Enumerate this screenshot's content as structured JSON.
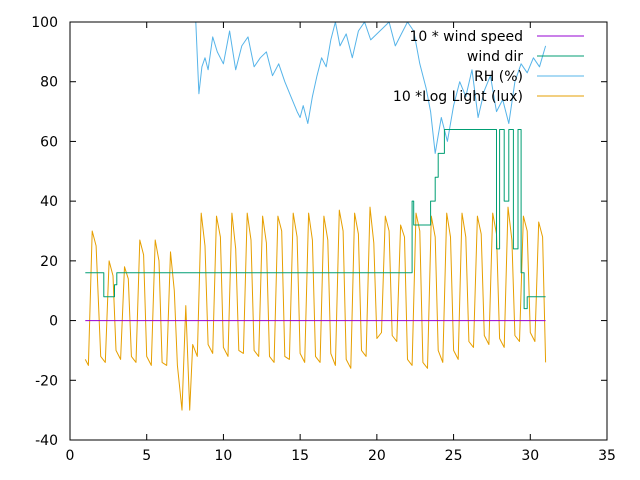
{
  "chart_data": {
    "type": "line",
    "title": "",
    "xlabel": "",
    "ylabel": "",
    "xlim": [
      0,
      35
    ],
    "ylim": [
      -40,
      100
    ],
    "xticks": [
      0,
      5,
      10,
      15,
      20,
      25,
      30,
      35
    ],
    "yticks": [
      -40,
      -20,
      0,
      20,
      40,
      60,
      80,
      100
    ],
    "xtick_labels": [
      "0",
      "5",
      "10",
      "15",
      "20",
      "25",
      "30",
      "35"
    ],
    "ytick_labels": [
      "-40",
      "-20",
      "0",
      "20",
      "40",
      "60",
      "80",
      "100"
    ],
    "grid": false,
    "legend_position": "top-right",
    "series": [
      {
        "name": "10 * wind speed",
        "color": "#9400d3",
        "x": [
          1.0,
          31.0
        ],
        "y": [
          0,
          0
        ]
      },
      {
        "name": "wind dir",
        "color": "#009e73",
        "x": [
          1.0,
          2.2,
          2.2,
          2.9,
          2.9,
          3.05,
          3.05,
          22.3,
          22.3,
          22.4,
          22.4,
          23.5,
          23.5,
          23.8,
          23.8,
          24.0,
          24.0,
          24.4,
          24.4,
          25.0,
          25.0,
          27.8,
          27.8,
          28.0,
          28.0,
          28.3,
          28.3,
          28.6,
          28.6,
          28.9,
          28.9,
          29.2,
          29.2,
          29.4,
          29.4,
          29.6,
          29.6,
          29.8,
          29.8,
          31.0
        ],
        "y": [
          16,
          16,
          8,
          8,
          12,
          12,
          16,
          16,
          40,
          40,
          32,
          32,
          40,
          40,
          48,
          48,
          56,
          56,
          64,
          64,
          64,
          64,
          24,
          24,
          64,
          64,
          40,
          40,
          64,
          64,
          24,
          24,
          64,
          64,
          16,
          16,
          4,
          4,
          8,
          8
        ]
      },
      {
        "name": "RH (%)",
        "color": "#56b4e9",
        "x": [
          8.2,
          8.4,
          8.6,
          8.8,
          9.0,
          9.3,
          9.6,
          10.0,
          10.4,
          10.8,
          11.2,
          11.6,
          12.0,
          12.4,
          12.8,
          13.2,
          13.6,
          14.0,
          14.4,
          14.8,
          15.0,
          15.2,
          15.5,
          15.8,
          16.1,
          16.4,
          16.7,
          17.0,
          17.3,
          17.6,
          18.0,
          18.4,
          18.8,
          19.2,
          19.6,
          20.0,
          20.4,
          20.8,
          21.2,
          21.6,
          22.0,
          22.4,
          22.8,
          23.2,
          23.5,
          23.8,
          24.0,
          24.2,
          24.6,
          25.0,
          25.4,
          25.8,
          26.2,
          26.6,
          27.0,
          27.4,
          27.8,
          28.2,
          28.6,
          29.0,
          29.4,
          29.8,
          30.2,
          30.6,
          31.0
        ],
        "y": [
          100,
          76,
          85,
          88,
          84,
          95,
          90,
          86,
          97,
          84,
          92,
          95,
          85,
          88,
          90,
          82,
          86,
          80,
          75,
          70,
          68,
          72,
          66,
          75,
          82,
          88,
          85,
          94,
          100,
          92,
          96,
          88,
          97,
          100,
          94,
          96,
          98,
          100,
          92,
          96,
          100,
          97,
          86,
          78,
          70,
          56,
          62,
          68,
          60,
          72,
          80,
          75,
          84,
          68,
          77,
          82,
          70,
          74,
          66,
          80,
          86,
          83,
          88,
          85,
          92
        ]
      },
      {
        "name": "10 *Log Light (lux)",
        "color": "#e69f00",
        "x": [
          1.0,
          1.2,
          1.45,
          1.7,
          2.0,
          2.3,
          2.55,
          2.8,
          3.0,
          3.3,
          3.55,
          3.8,
          4.0,
          4.3,
          4.55,
          4.8,
          5.0,
          5.3,
          5.55,
          5.8,
          6.0,
          6.3,
          6.55,
          6.8,
          7.0,
          7.3,
          7.55,
          7.8,
          8.0,
          8.3,
          8.55,
          8.8,
          9.0,
          9.3,
          9.55,
          9.8,
          10.0,
          10.3,
          10.55,
          10.8,
          11.0,
          11.3,
          11.55,
          11.8,
          12.0,
          12.3,
          12.55,
          12.8,
          13.0,
          13.3,
          13.55,
          13.8,
          14.0,
          14.3,
          14.55,
          14.8,
          15.0,
          15.3,
          15.55,
          15.8,
          16.0,
          16.3,
          16.55,
          16.8,
          17.0,
          17.3,
          17.55,
          17.8,
          18.0,
          18.3,
          18.55,
          18.8,
          19.0,
          19.3,
          19.55,
          19.8,
          20.0,
          20.3,
          20.55,
          20.8,
          21.0,
          21.3,
          21.55,
          21.8,
          22.0,
          22.3,
          22.55,
          22.8,
          23.0,
          23.3,
          23.55,
          23.8,
          24.0,
          24.3,
          24.55,
          24.8,
          25.0,
          25.3,
          25.55,
          25.8,
          26.0,
          26.3,
          26.55,
          26.8,
          27.0,
          27.3,
          27.55,
          27.8,
          28.0,
          28.3,
          28.55,
          28.8,
          29.0,
          29.3,
          29.55,
          29.8,
          30.0,
          30.3,
          30.55,
          30.8,
          31.0
        ],
        "y": [
          -13,
          -15,
          30,
          25,
          -12,
          -14,
          20,
          15,
          -10,
          -13,
          18,
          14,
          -12,
          -14,
          27,
          22,
          -12,
          -15,
          27,
          20,
          -14,
          -15,
          23,
          10,
          -15,
          -30,
          5,
          -30,
          -8,
          -12,
          36,
          25,
          -8,
          -11,
          35,
          28,
          -9,
          -12,
          36,
          24,
          -10,
          -11,
          36,
          27,
          -10,
          -12,
          35,
          26,
          -12,
          -14,
          35,
          30,
          -12,
          -13,
          36,
          28,
          -11,
          -14,
          36,
          27,
          -12,
          -14,
          35,
          27,
          -11,
          -15,
          37,
          30,
          -13,
          -16,
          36,
          29,
          -10,
          -12,
          38,
          26,
          -6,
          -4,
          35,
          30,
          -5,
          -7,
          32,
          28,
          -13,
          -15,
          36,
          30,
          -14,
          -16,
          35,
          28,
          -10,
          -14,
          36,
          28,
          -10,
          -13,
          36,
          28,
          -7,
          -9,
          35,
          29,
          -5,
          -8,
          36,
          29,
          -6,
          -9,
          38,
          27,
          -5,
          -7,
          35,
          30,
          -4,
          -7,
          33,
          28,
          -14
        ]
      }
    ]
  }
}
